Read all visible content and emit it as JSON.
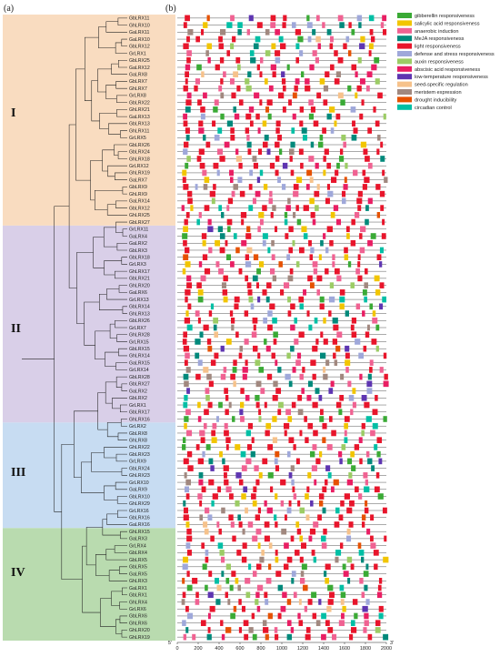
{
  "panels": {
    "a": "(a)",
    "b": "(b)"
  },
  "groups": [
    {
      "label": "I",
      "start": 0,
      "end": 19,
      "color": "#f9dcc0"
    },
    {
      "label": "II",
      "start": 20,
      "end": 38,
      "color": "#d9cfe8"
    },
    {
      "label": "III",
      "start": 39,
      "end": 48,
      "color": "#c7dcf2"
    },
    {
      "label": "IV",
      "start": 49,
      "end": 59,
      "color": "#b9dbaf"
    }
  ],
  "genes": [
    "GbLRX11",
    "GhLRX10",
    "GaLRX11",
    "GaLRX10",
    "GbLRX12",
    "GrLRX1",
    "GbLRX25",
    "GaLRX12",
    "GaLRX8",
    "GbLRX7",
    "GhLRX7",
    "GrLRX8",
    "GbLRX22",
    "GhLRX21",
    "GaLRX13",
    "GbLRX13",
    "GhLRX11",
    "GrLRX5",
    "GbLRX26",
    "GbLRX24",
    "GhLRX18",
    "GrLRX12",
    "GhLRX19",
    "GaLRX7",
    "GbLRX9",
    "GhLRX9",
    "GaLRX14",
    "GbLRX12",
    "GhLRX25",
    "GbLRX27",
    "GrLRX11",
    "GaLRX4",
    "GaLRX2",
    "GbLRX3",
    "GbLRX18",
    "GrLRX3",
    "GhLRX17",
    "GbLRX21",
    "GhLRX20",
    "GaLRX6",
    "GrLRX13",
    "GbLRX14",
    "GhLRX13",
    "GbLRX26",
    "GrLRX7",
    "GhLRX28",
    "GrLRX15",
    "GbLRX15",
    "GhLRX14",
    "GaLRX15",
    "GrLRX14",
    "GbLRX28",
    "GbLRX27",
    "GaLRX2",
    "GbLRX2",
    "GrLRX1",
    "GbLRX17",
    "GhLRX16",
    "GrLRX2",
    "GbLRX8",
    "GhLRX8",
    "GhLRX22",
    "GbLRX23",
    "GrLRX9",
    "GbLRX24",
    "GhLRX23",
    "GrLRX10",
    "GaLRX9",
    "GbLRX10",
    "GhLRX29",
    "GrLRX16",
    "GbLRX16",
    "GaLRX16",
    "GhLRX15",
    "GaLRX3",
    "GrLRX4",
    "GbLRX4",
    "GbLRX5",
    "GbLRX5",
    "GaLRX5",
    "GhLRX3",
    "GaLRX1",
    "GbLRX1",
    "GhLRX4",
    "GrLRX6",
    "GbLRX6",
    "GhLRX6",
    "GhLRX20",
    "GhLRX19"
  ],
  "legend": [
    {
      "label": "gibberellin responsiveness",
      "color": "#3aaa35"
    },
    {
      "label": "salicylic acid responsiveness",
      "color": "#f2c500"
    },
    {
      "label": "anaerobic induction",
      "color": "#f06292"
    },
    {
      "label": "MeJA responsiveness",
      "color": "#00897b"
    },
    {
      "label": "light responsiveness",
      "color": "#e8152b"
    },
    {
      "label": "defense and stress responsiveness",
      "color": "#9fa8da"
    },
    {
      "label": "auxin responsiveness",
      "color": "#9ccc65"
    },
    {
      "label": "abscisic acid responsiveness",
      "color": "#e91e63"
    },
    {
      "label": "low-temperature responsiveness",
      "color": "#5e35b1"
    },
    {
      "label": "seed-specific regulation",
      "color": "#f6c28b"
    },
    {
      "label": "meristem expression",
      "color": "#a1887f"
    },
    {
      "label": "drought inducibility",
      "color": "#e65100"
    },
    {
      "label": "circadian control",
      "color": "#00bfa5"
    }
  ],
  "axis": {
    "ticks": [
      "0",
      "200",
      "400",
      "600",
      "800",
      "1000",
      "1200",
      "1400",
      "1600",
      "1800",
      "2000"
    ],
    "tick_values": [
      0,
      200,
      400,
      600,
      800,
      1000,
      1200,
      1400,
      1600,
      1800,
      2000
    ],
    "max": 2000,
    "left_end": "5'",
    "right_end": "3'"
  }
}
